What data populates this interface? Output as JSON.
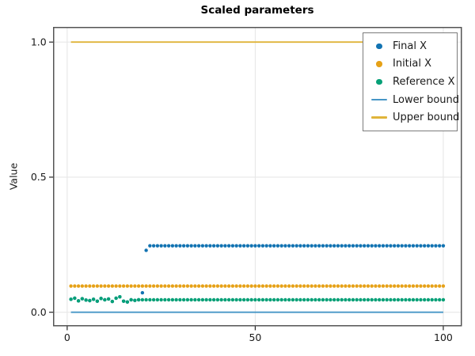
{
  "chart_data": {
    "type": "scatter",
    "title": "Scaled parameters",
    "xlabel": "",
    "ylabel": "Value",
    "xlim": [
      -3.6,
      104.8
    ],
    "ylim": [
      -0.05,
      1.054
    ],
    "grid": true,
    "legend_position": "upper right",
    "xticks": {
      "values": [
        0,
        50,
        100
      ],
      "labels": [
        "0",
        "50",
        "100"
      ]
    },
    "yticks": {
      "values": [
        0,
        0.5,
        1.0
      ],
      "labels": [
        "0.0",
        "0.5",
        "1.0"
      ]
    },
    "x": [
      1,
      2,
      3,
      4,
      5,
      6,
      7,
      8,
      9,
      10,
      11,
      12,
      13,
      14,
      15,
      16,
      17,
      18,
      19,
      20,
      21,
      22,
      23,
      24,
      25,
      26,
      27,
      28,
      29,
      30,
      31,
      32,
      33,
      34,
      35,
      36,
      37,
      38,
      39,
      40,
      41,
      42,
      43,
      44,
      45,
      46,
      47,
      48,
      49,
      50,
      51,
      52,
      53,
      54,
      55,
      56,
      57,
      58,
      59,
      60,
      61,
      62,
      63,
      64,
      65,
      66,
      67,
      68,
      69,
      70,
      71,
      72,
      73,
      74,
      75,
      76,
      77,
      78,
      79,
      80,
      81,
      82,
      83,
      84,
      85,
      86,
      87,
      88,
      89,
      90,
      91,
      92,
      93,
      94,
      95,
      96,
      97,
      98,
      99,
      100
    ],
    "series": [
      {
        "name": "Final X",
        "type": "scatter",
        "color": "#1273b2",
        "marker": "circle",
        "y": [
          0.048,
          0.052,
          0.042,
          0.05,
          0.045,
          0.043,
          0.048,
          0.041,
          0.051,
          0.046,
          0.049,
          0.04,
          0.052,
          0.057,
          0.041,
          0.038,
          0.046,
          0.044,
          0.046,
          0.072,
          0.229,
          0.246,
          0.246,
          0.246,
          0.246,
          0.246,
          0.246,
          0.246,
          0.246,
          0.246,
          0.246,
          0.246,
          0.246,
          0.246,
          0.246,
          0.246,
          0.246,
          0.246,
          0.246,
          0.246,
          0.246,
          0.246,
          0.246,
          0.246,
          0.246,
          0.246,
          0.246,
          0.246,
          0.246,
          0.246,
          0.246,
          0.246,
          0.246,
          0.246,
          0.246,
          0.246,
          0.246,
          0.246,
          0.246,
          0.246,
          0.246,
          0.246,
          0.246,
          0.246,
          0.246,
          0.246,
          0.246,
          0.246,
          0.246,
          0.246,
          0.246,
          0.246,
          0.246,
          0.246,
          0.246,
          0.246,
          0.246,
          0.246,
          0.246,
          0.246,
          0.246,
          0.246,
          0.246,
          0.246,
          0.246,
          0.246,
          0.246,
          0.246,
          0.246,
          0.246,
          0.246,
          0.246,
          0.246,
          0.246,
          0.246,
          0.246,
          0.246,
          0.246,
          0.246,
          0.246
        ]
      },
      {
        "name": "Initial X",
        "type": "scatter",
        "color": "#e6a117",
        "marker": "circle",
        "y": [
          0.097,
          0.097,
          0.097,
          0.097,
          0.097,
          0.097,
          0.097,
          0.097,
          0.097,
          0.097,
          0.097,
          0.097,
          0.097,
          0.097,
          0.097,
          0.097,
          0.097,
          0.097,
          0.097,
          0.097,
          0.097,
          0.097,
          0.097,
          0.097,
          0.097,
          0.097,
          0.097,
          0.097,
          0.097,
          0.097,
          0.097,
          0.097,
          0.097,
          0.097,
          0.097,
          0.097,
          0.097,
          0.097,
          0.097,
          0.097,
          0.097,
          0.097,
          0.097,
          0.097,
          0.097,
          0.097,
          0.097,
          0.097,
          0.097,
          0.097,
          0.097,
          0.097,
          0.097,
          0.097,
          0.097,
          0.097,
          0.097,
          0.097,
          0.097,
          0.097,
          0.097,
          0.097,
          0.097,
          0.097,
          0.097,
          0.097,
          0.097,
          0.097,
          0.097,
          0.097,
          0.097,
          0.097,
          0.097,
          0.097,
          0.097,
          0.097,
          0.097,
          0.097,
          0.097,
          0.097,
          0.097,
          0.097,
          0.097,
          0.097,
          0.097,
          0.097,
          0.097,
          0.097,
          0.097,
          0.097,
          0.097,
          0.097,
          0.097,
          0.097,
          0.097,
          0.097,
          0.097,
          0.097,
          0.097,
          0.097
        ]
      },
      {
        "name": "Reference X",
        "type": "scatter",
        "color": "#06a077",
        "marker": "circle",
        "y": [
          0.048,
          0.052,
          0.042,
          0.05,
          0.045,
          0.043,
          0.048,
          0.041,
          0.051,
          0.046,
          0.049,
          0.04,
          0.052,
          0.057,
          0.041,
          0.038,
          0.046,
          0.044,
          0.046,
          0.046,
          0.046,
          0.046,
          0.046,
          0.046,
          0.046,
          0.046,
          0.046,
          0.046,
          0.046,
          0.046,
          0.046,
          0.046,
          0.046,
          0.046,
          0.046,
          0.046,
          0.046,
          0.046,
          0.046,
          0.046,
          0.046,
          0.046,
          0.046,
          0.046,
          0.046,
          0.046,
          0.046,
          0.046,
          0.046,
          0.046,
          0.046,
          0.046,
          0.046,
          0.046,
          0.046,
          0.046,
          0.046,
          0.046,
          0.046,
          0.046,
          0.046,
          0.046,
          0.046,
          0.046,
          0.046,
          0.046,
          0.046,
          0.046,
          0.046,
          0.046,
          0.046,
          0.046,
          0.046,
          0.046,
          0.046,
          0.046,
          0.046,
          0.046,
          0.046,
          0.046,
          0.046,
          0.046,
          0.046,
          0.046,
          0.046,
          0.046,
          0.046,
          0.046,
          0.046,
          0.046,
          0.046,
          0.046,
          0.046,
          0.046,
          0.046,
          0.046,
          0.046,
          0.046,
          0.046,
          0.046
        ]
      },
      {
        "name": "Lower bound",
        "type": "line",
        "color": "#4796c6",
        "x": [
          1,
          100
        ],
        "y": [
          0.0,
          0.0
        ]
      },
      {
        "name": "Upper bound",
        "type": "line",
        "color": "#e0b43a",
        "x": [
          1,
          100
        ],
        "y": [
          1.0,
          1.0
        ]
      }
    ],
    "style": {
      "grid_color": "#e7e7e7",
      "spine_color": "#545454",
      "tick_color": "#262626",
      "text_color": "#1a1a1a",
      "legend_border_color": "#7b7b7b",
      "background": "#ffffff"
    }
  }
}
